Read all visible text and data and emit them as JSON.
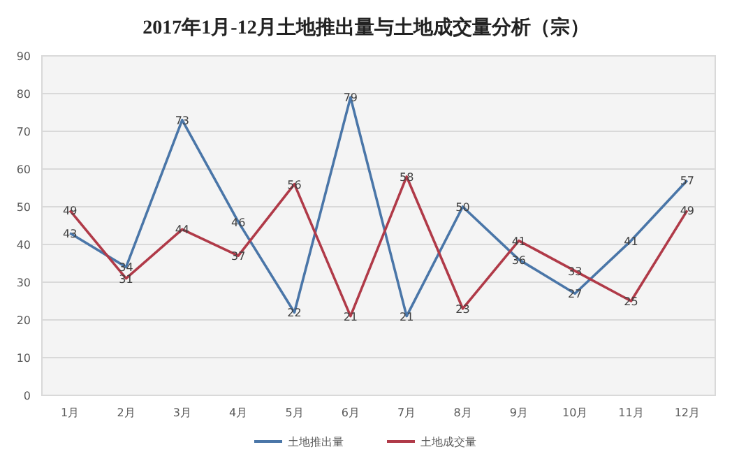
{
  "chart_data": {
    "type": "line",
    "title": "2017年1月-12月土地推出量与土地成交量分析（宗）",
    "categories": [
      "1月",
      "2月",
      "3月",
      "4月",
      "5月",
      "6月",
      "7月",
      "8月",
      "9月",
      "10月",
      "11月",
      "12月"
    ],
    "series": [
      {
        "name": "土地推出量",
        "color": "#4a76a8",
        "values": [
          43,
          34,
          73,
          46,
          22,
          79,
          21,
          50,
          36,
          27,
          41,
          57
        ]
      },
      {
        "name": "土地成交量",
        "color": "#b03a48",
        "values": [
          49,
          31,
          44,
          37,
          56,
          21,
          58,
          23,
          41,
          33,
          25,
          49
        ]
      }
    ],
    "ylim": [
      0,
      90
    ],
    "yticks": [
      0,
      10,
      20,
      30,
      40,
      50,
      60,
      70,
      80,
      90
    ],
    "grid": "y",
    "legend": "bottom",
    "data_labels": true,
    "marker": "none",
    "line_style": "solid"
  }
}
